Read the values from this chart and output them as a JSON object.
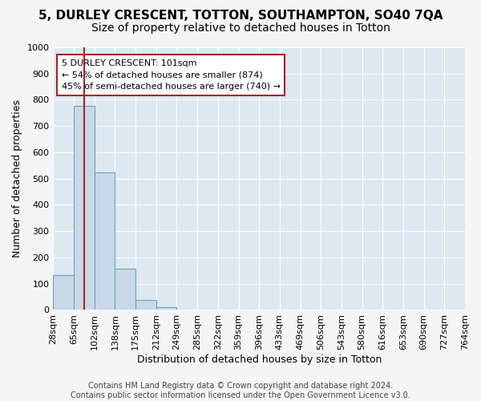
{
  "title": "5, DURLEY CRESCENT, TOTTON, SOUTHAMPTON, SO40 7QA",
  "subtitle": "Size of property relative to detached houses in Totton",
  "xlabel": "Distribution of detached houses by size in Totton",
  "ylabel": "Number of detached properties",
  "bin_labels": [
    "28sqm",
    "65sqm",
    "102sqm",
    "138sqm",
    "175sqm",
    "212sqm",
    "249sqm",
    "285sqm",
    "322sqm",
    "359sqm",
    "396sqm",
    "433sqm",
    "469sqm",
    "506sqm",
    "543sqm",
    "580sqm",
    "616sqm",
    "653sqm",
    "690sqm",
    "727sqm",
    "764sqm"
  ],
  "bar_heights": [
    133,
    778,
    525,
    158,
    37,
    12,
    0,
    0,
    0,
    0,
    0,
    0,
    0,
    0,
    0,
    0,
    0,
    0,
    0,
    0
  ],
  "bar_color": "#c8d8e8",
  "bar_edge_color": "#6699bb",
  "vline_x": 1.5,
  "vline_color": "#aa2222",
  "annotation_text": "5 DURLEY CRESCENT: 101sqm\n← 54% of detached houses are smaller (874)\n45% of semi-detached houses are larger (740) →",
  "annotation_box_color": "#ffffff",
  "annotation_box_edge": "#aa2222",
  "ylim": [
    0,
    1000
  ],
  "yticks": [
    0,
    100,
    200,
    300,
    400,
    500,
    600,
    700,
    800,
    900,
    1000
  ],
  "footer_text": "Contains HM Land Registry data © Crown copyright and database right 2024.\nContains public sector information licensed under the Open Government Licence v3.0.",
  "bg_color": "#dde8f0",
  "grid_color": "#ffffff",
  "fig_bg_color": "#f5f5f5",
  "title_fontsize": 11,
  "subtitle_fontsize": 10,
  "axis_label_fontsize": 9,
  "tick_fontsize": 8,
  "annotation_fontsize": 8,
  "footer_fontsize": 7
}
